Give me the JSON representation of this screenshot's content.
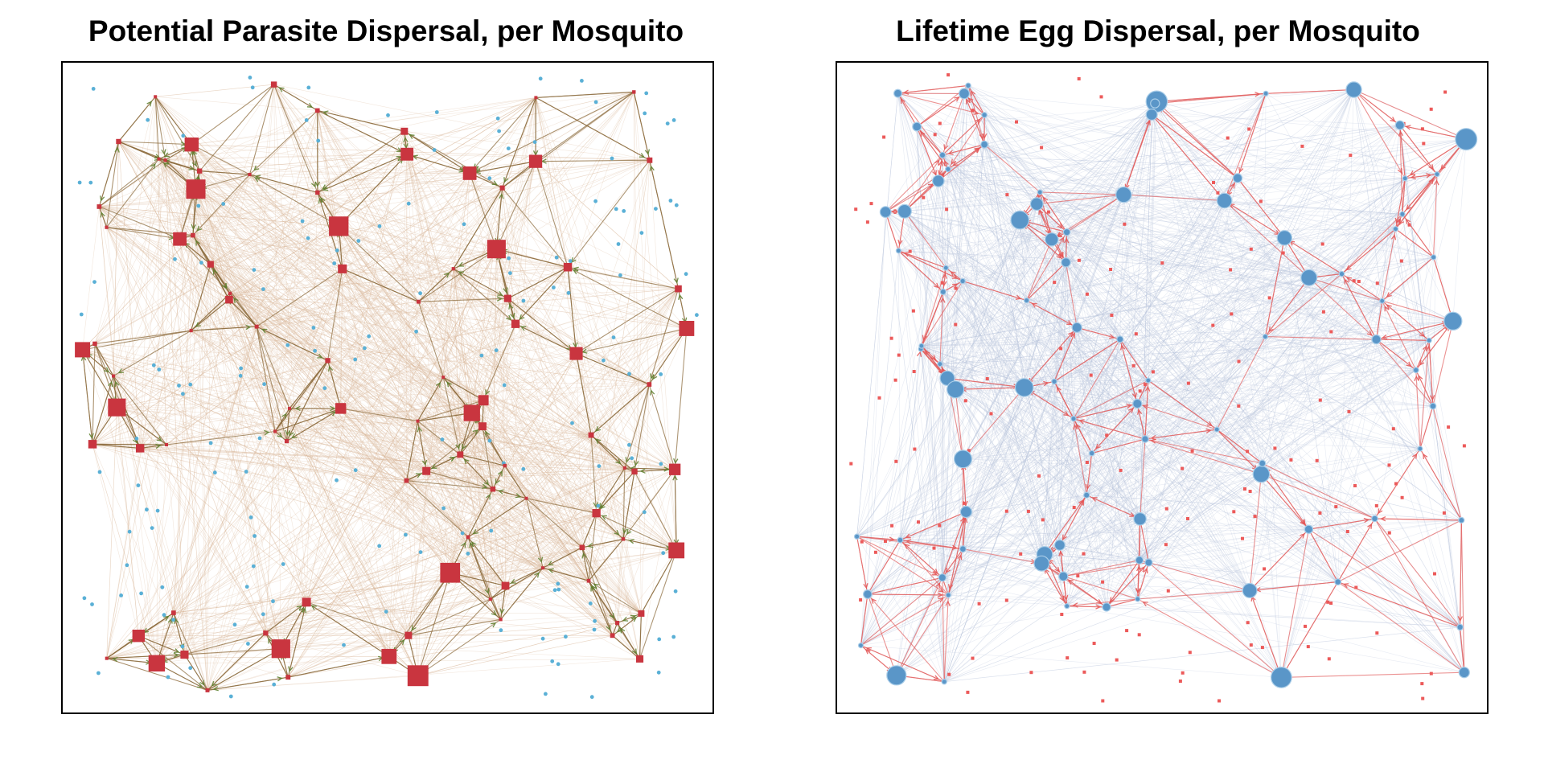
{
  "panels": [
    {
      "title": "Potential Parasite Dispersal, per Mosquito",
      "node_color": "#c9353f",
      "point_color": "#5ab0d6",
      "edge_color": "#8a6a3a",
      "arrow_color": "#5a7e2a",
      "faint_edge_color": "#d9b89a"
    },
    {
      "title": "Lifetime Egg Dispersal, per Mosquito",
      "node_color": "#5a96c8",
      "point_color": "#ec5a5a",
      "edge_color": "#e36262",
      "arrow_color": "#e45555",
      "faint_edge_color": "#b9c6de"
    }
  ]
}
